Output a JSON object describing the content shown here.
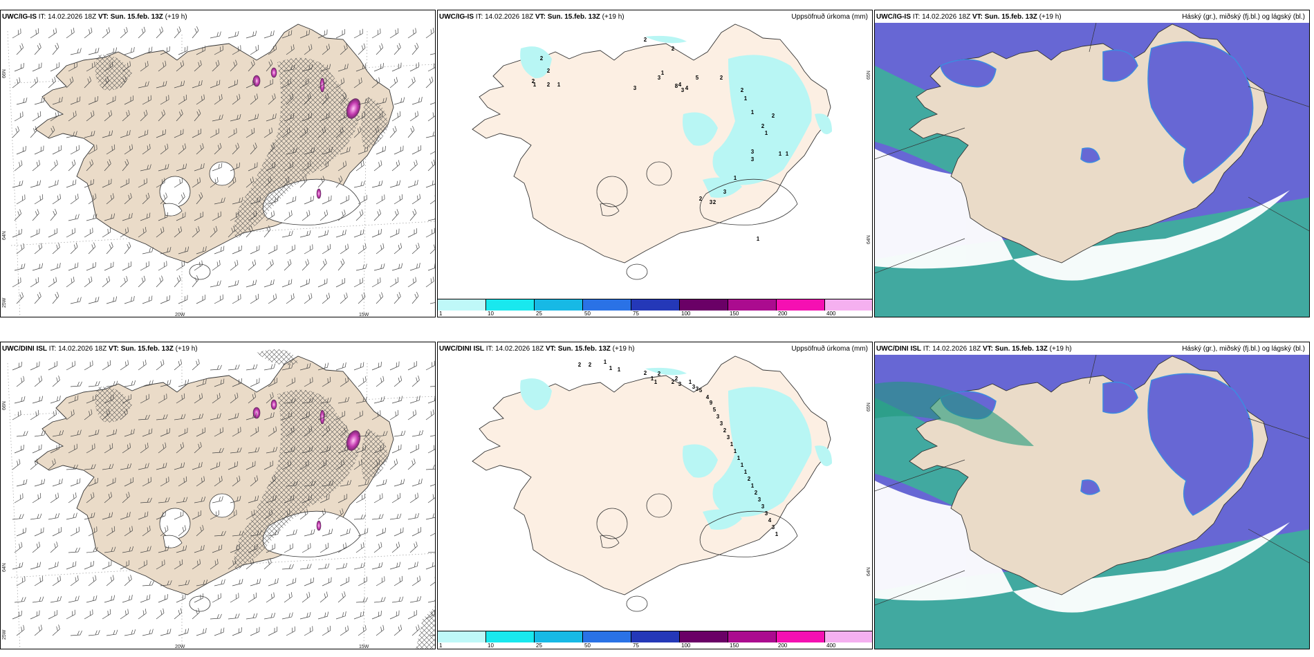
{
  "rows": [
    {
      "model": "UWC/IG-IS",
      "it": "IT: 14.02.2026 18Z",
      "vt_label": "VT:",
      "vt": "Sun. 15.feb. 13Z",
      "lead": "(+19 h)",
      "precip_labels": [
        "2",
        "2",
        "2",
        "2",
        "1",
        "1",
        "2",
        "2",
        "1",
        "3",
        "4",
        "3",
        "8",
        "4",
        "3",
        "5",
        "2",
        "2",
        "1",
        "1",
        "2",
        "1",
        "2",
        "1",
        "1",
        "3",
        "3",
        "2",
        "3",
        "3",
        "2",
        "1",
        "1"
      ],
      "variant": "a"
    },
    {
      "model": "UWC/DINI ISL",
      "it": "IT: 14.02.2026 18Z",
      "vt_label": "VT:",
      "vt": "Sun. 15.feb. 13Z",
      "lead": "(+19 h)",
      "precip_labels": [
        "2",
        "2",
        "1",
        "1",
        "1",
        "2",
        "2",
        "1",
        "1",
        "2",
        "2",
        "3",
        "1",
        "3",
        "3",
        "5",
        "4",
        "9",
        "5",
        "3",
        "3",
        "2",
        "3",
        "1",
        "1",
        "1",
        "1",
        "1",
        "2",
        "1",
        "2",
        "3",
        "3",
        "3",
        "4",
        "3",
        "1"
      ],
      "variant": "b"
    }
  ],
  "precip_title": "Uppsöfnuð úrkoma (mm)",
  "cloud_title": "Háský (gr.), miðský (fj.bl.) og lágský (bl.)",
  "colorbar": {
    "ticks": [
      "1",
      "10",
      "25",
      "50",
      "75",
      "100",
      "150",
      "200",
      "400"
    ],
    "colors": [
      "#bff8f8",
      "#19e8ee",
      "#17b9e5",
      "#2a72e6",
      "#2438b8",
      "#6a0066",
      "#ab0b8f",
      "#f510b2",
      "#f5b0f0"
    ]
  },
  "grid_labels": {
    "lon": [
      "20W",
      "15W"
    ],
    "lat": [
      "66N",
      "64N",
      "25W"
    ],
    "lat_mid": [
      "65N",
      "64N"
    ]
  },
  "colors": {
    "land": "#eadbc8",
    "land_precip": "#fcefe3",
    "precip_light": "#b8f6f4",
    "cloud_high": "#6767d4",
    "cloud_low": "#3bb596"
  }
}
